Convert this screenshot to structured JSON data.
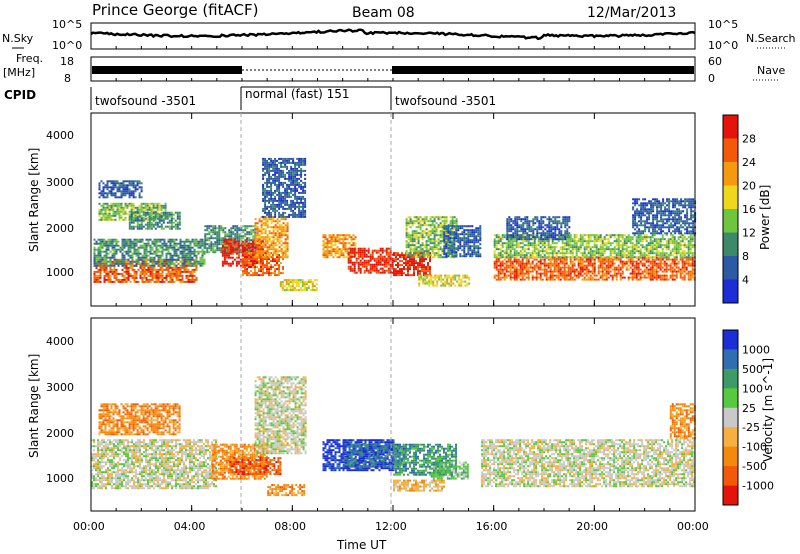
{
  "header": {
    "station": "Prince George (fitACF)",
    "beam": "Beam 08",
    "date": "12/Mar/2013"
  },
  "left_labels": {
    "nsky": "N.Sky",
    "freq_line1": "Freq.",
    "freq_line2": "[MHz]",
    "cpid": "CPID"
  },
  "right_labels": {
    "nsearch": "N.Search",
    "nave": "Nave"
  },
  "noise_axis": {
    "top": "10^5",
    "bottom": "10^0"
  },
  "freq_axis": {
    "left_top": "18",
    "left_bottom": "8",
    "right_top": "60",
    "right_bottom": "0"
  },
  "cpid_segments": [
    {
      "label": "twofsound -3501",
      "start_hour": 0,
      "end_hour": 6
    },
    {
      "label": "normal (fast) 151",
      "start_hour": 6,
      "end_hour": 12
    },
    {
      "label": "twofsound -3501",
      "start_hour": 12,
      "end_hour": 24
    }
  ],
  "x_axis": {
    "label": "Time UT",
    "ticks": [
      "00:00",
      "04:00",
      "08:00",
      "12:00",
      "16:00",
      "20:00",
      "00:00"
    ],
    "range_hours": [
      0,
      24
    ]
  },
  "chart_data": [
    {
      "type": "heatmap",
      "title": "",
      "xlabel": "Time UT",
      "ylabel": "Slant Range [km]",
      "xlim": [
        0,
        24
      ],
      "ylim": [
        200,
        4500
      ],
      "yticks": [
        "1000",
        "2000",
        "3000",
        "4000"
      ],
      "colorbar": {
        "label": "Power [dB]",
        "ticks": [
          "4",
          "8",
          "12",
          "16",
          "20",
          "24",
          "28"
        ],
        "colors": [
          "#1c2fd6",
          "#2d5aa5",
          "#3c8a6a",
          "#6fc53e",
          "#f0d61c",
          "#f59a0e",
          "#f25a0a",
          "#e4140a"
        ]
      },
      "regions": [
        {
          "t0": 0.1,
          "t1": 4.2,
          "r0": 750,
          "r1": 1250,
          "level": 6
        },
        {
          "t0": 0.1,
          "t1": 4.5,
          "r0": 1100,
          "r1": 1700,
          "level": 2
        },
        {
          "t0": 0.3,
          "t1": 3.0,
          "r0": 2100,
          "r1": 2500,
          "level": 3
        },
        {
          "t0": 0.3,
          "t1": 2.0,
          "r0": 2600,
          "r1": 3000,
          "level": 1
        },
        {
          "t0": 1.5,
          "t1": 3.5,
          "r0": 1900,
          "r1": 2300,
          "level": 2
        },
        {
          "t0": 4.5,
          "t1": 6.5,
          "r0": 1400,
          "r1": 2000,
          "level": 2
        },
        {
          "t0": 5.2,
          "t1": 6.8,
          "r0": 1100,
          "r1": 1700,
          "level": 7
        },
        {
          "t0": 6.0,
          "t1": 7.6,
          "r0": 900,
          "r1": 1400,
          "level": 6
        },
        {
          "t0": 6.5,
          "t1": 7.8,
          "r0": 1300,
          "r1": 2200,
          "level": 5
        },
        {
          "t0": 6.8,
          "t1": 8.5,
          "r0": 2200,
          "r1": 3500,
          "level": 1
        },
        {
          "t0": 7.5,
          "t1": 9.0,
          "r0": 550,
          "r1": 800,
          "level": 4
        },
        {
          "t0": 9.2,
          "t1": 10.5,
          "r0": 1300,
          "r1": 1800,
          "level": 5
        },
        {
          "t0": 10.2,
          "t1": 12.0,
          "r0": 950,
          "r1": 1500,
          "level": 7
        },
        {
          "t0": 12.0,
          "t1": 13.5,
          "r0": 900,
          "r1": 1400,
          "level": 7
        },
        {
          "t0": 12.5,
          "t1": 14.5,
          "r0": 1300,
          "r1": 2200,
          "level": 3
        },
        {
          "t0": 13.0,
          "t1": 15.0,
          "r0": 650,
          "r1": 900,
          "level": 4
        },
        {
          "t0": 14.0,
          "t1": 15.5,
          "r0": 1300,
          "r1": 2000,
          "level": 1
        },
        {
          "t0": 16.0,
          "t1": 24.0,
          "r0": 800,
          "r1": 1300,
          "level": 6
        },
        {
          "t0": 16.0,
          "t1": 24.0,
          "r0": 1300,
          "r1": 1800,
          "level": 3
        },
        {
          "t0": 16.5,
          "t1": 19.0,
          "r0": 1700,
          "r1": 2200,
          "level": 1
        },
        {
          "t0": 21.5,
          "t1": 24.0,
          "r0": 1800,
          "r1": 2600,
          "level": 1
        }
      ]
    },
    {
      "type": "heatmap",
      "title": "",
      "xlabel": "Time UT",
      "ylabel": "Slant Range [km]",
      "xlim": [
        0,
        24
      ],
      "ylim": [
        200,
        4500
      ],
      "yticks": [
        "1000",
        "2000",
        "3000",
        "4000"
      ],
      "colorbar": {
        "label": "Velocity [m s^-1]",
        "ticks": [
          "1000",
          "500",
          "100",
          "25",
          "-25",
          "-100",
          "-500",
          "-1000"
        ],
        "colors": [
          "#1c2fd6",
          "#2f6eb0",
          "#3f9a6a",
          "#57c93e",
          "#c9c9c9",
          "#f5b040",
          "#f5890e",
          "#f25a0a",
          "#e4140a"
        ]
      },
      "regions": [
        {
          "t0": 0.0,
          "t1": 5.0,
          "r0": 700,
          "r1": 1800,
          "level": 4
        },
        {
          "t0": 0.3,
          "t1": 3.5,
          "r0": 1900,
          "r1": 2600,
          "level": 6
        },
        {
          "t0": 4.8,
          "t1": 7.0,
          "r0": 900,
          "r1": 1700,
          "level": 6
        },
        {
          "t0": 5.5,
          "t1": 7.5,
          "r0": 1000,
          "r1": 1400,
          "level": 7
        },
        {
          "t0": 6.5,
          "t1": 8.5,
          "r0": 1500,
          "r1": 3200,
          "level": 4
        },
        {
          "t0": 7.0,
          "t1": 8.5,
          "r0": 550,
          "r1": 800,
          "level": 6
        },
        {
          "t0": 9.2,
          "t1": 12.0,
          "r0": 1100,
          "r1": 1800,
          "level": 0
        },
        {
          "t0": 10.0,
          "t1": 12.5,
          "r0": 1200,
          "r1": 1700,
          "level": 1
        },
        {
          "t0": 12.0,
          "t1": 14.5,
          "r0": 1000,
          "r1": 1700,
          "level": 2
        },
        {
          "t0": 13.5,
          "t1": 15.0,
          "r0": 900,
          "r1": 1300,
          "level": 3
        },
        {
          "t0": 12.0,
          "t1": 14.0,
          "r0": 650,
          "r1": 900,
          "level": 5
        },
        {
          "t0": 15.5,
          "t1": 24.0,
          "r0": 750,
          "r1": 1800,
          "level": 4
        },
        {
          "t0": 23.0,
          "t1": 24.0,
          "r0": 1800,
          "r1": 2600,
          "level": 6
        }
      ]
    }
  ]
}
